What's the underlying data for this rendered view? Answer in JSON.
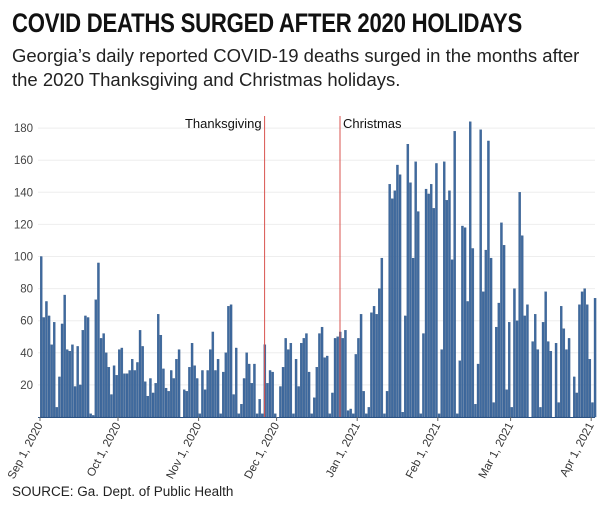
{
  "header": {
    "title": "COVID DEATHS SURGED AFTER 2020 HOLIDAYS",
    "subtitle": "Georgia’s daily reported COVID-19 deaths surged in the months after the 2020 Thanksgiving and Christmas holidays."
  },
  "footer": {
    "source": "SOURCE: Ga. Dept. of Public Health"
  },
  "colors": {
    "bar": "#3f6a9e",
    "bar_edge": "#2c5282",
    "annotation_line": "#d9534f",
    "grid": "#eeeeee"
  },
  "chart_data": {
    "type": "bar",
    "title": "COVID DEATHS SURGED AFTER 2020 HOLIDAYS",
    "xlabel": "",
    "ylabel": "",
    "start_date": "2020-09-01",
    "x_ticks": [
      "Sep 1, 2020",
      "Oct 1, 2020",
      "Nov 1, 2020",
      "Dec 1, 2020",
      "Jan 1, 2021",
      "Feb 1, 2021",
      "Mar 1, 2021",
      "Apr 1, 2021"
    ],
    "x_tick_day_offsets": [
      0,
      30,
      61,
      91,
      122,
      153,
      181,
      212
    ],
    "y_ticks": [
      20,
      40,
      60,
      80,
      100,
      120,
      140,
      160,
      180
    ],
    "ylim": [
      0,
      190
    ],
    "grid": true,
    "annotations": [
      {
        "label": "Thanksgiving",
        "date": "2020-11-26",
        "day_offset": 86
      },
      {
        "label": "Christmas",
        "date": "2020-12-25",
        "day_offset": 115
      }
    ],
    "values": [
      100,
      62,
      72,
      63,
      45,
      59,
      6,
      25,
      58,
      76,
      42,
      41,
      45,
      19,
      44,
      20,
      54,
      63,
      62,
      2,
      1,
      73,
      96,
      49,
      52,
      40,
      31,
      14,
      32,
      26,
      42,
      43,
      27,
      27,
      29,
      36,
      29,
      34,
      54,
      44,
      22,
      13,
      24,
      15,
      21,
      64,
      51,
      30,
      18,
      16,
      29,
      24,
      36,
      42,
      0,
      17,
      16,
      31,
      46,
      32,
      24,
      2,
      29,
      17,
      29,
      42,
      53,
      29,
      36,
      2,
      28,
      40,
      69,
      70,
      14,
      43,
      2,
      8,
      24,
      40,
      33,
      21,
      33,
      2,
      11,
      2,
      45,
      21,
      29,
      28,
      2,
      0,
      19,
      31,
      49,
      42,
      46,
      2,
      36,
      19,
      46,
      49,
      52,
      28,
      2,
      12,
      31,
      52,
      56,
      37,
      38,
      2,
      15,
      49,
      50,
      53,
      49,
      54,
      4,
      5,
      2,
      39,
      49,
      64,
      16,
      2,
      6,
      65,
      69,
      64,
      80,
      99,
      2,
      16,
      145,
      136,
      141,
      157,
      151,
      3,
      63,
      170,
      146,
      99,
      159,
      128,
      2,
      52,
      142,
      139,
      145,
      130,
      158,
      2,
      42,
      159,
      135,
      141,
      98,
      178,
      2,
      35,
      119,
      118,
      72,
      184,
      105,
      8,
      33,
      179,
      78,
      104,
      172,
      99,
      9,
      56,
      71,
      121,
      107,
      17,
      59,
      6,
      80,
      60,
      140,
      113,
      63,
      70,
      0,
      47,
      64,
      42,
      6,
      59,
      78,
      47,
      41,
      0,
      46,
      9,
      69,
      55,
      42,
      49,
      0,
      25,
      15,
      70,
      78,
      80,
      70,
      36,
      9,
      74
    ]
  }
}
